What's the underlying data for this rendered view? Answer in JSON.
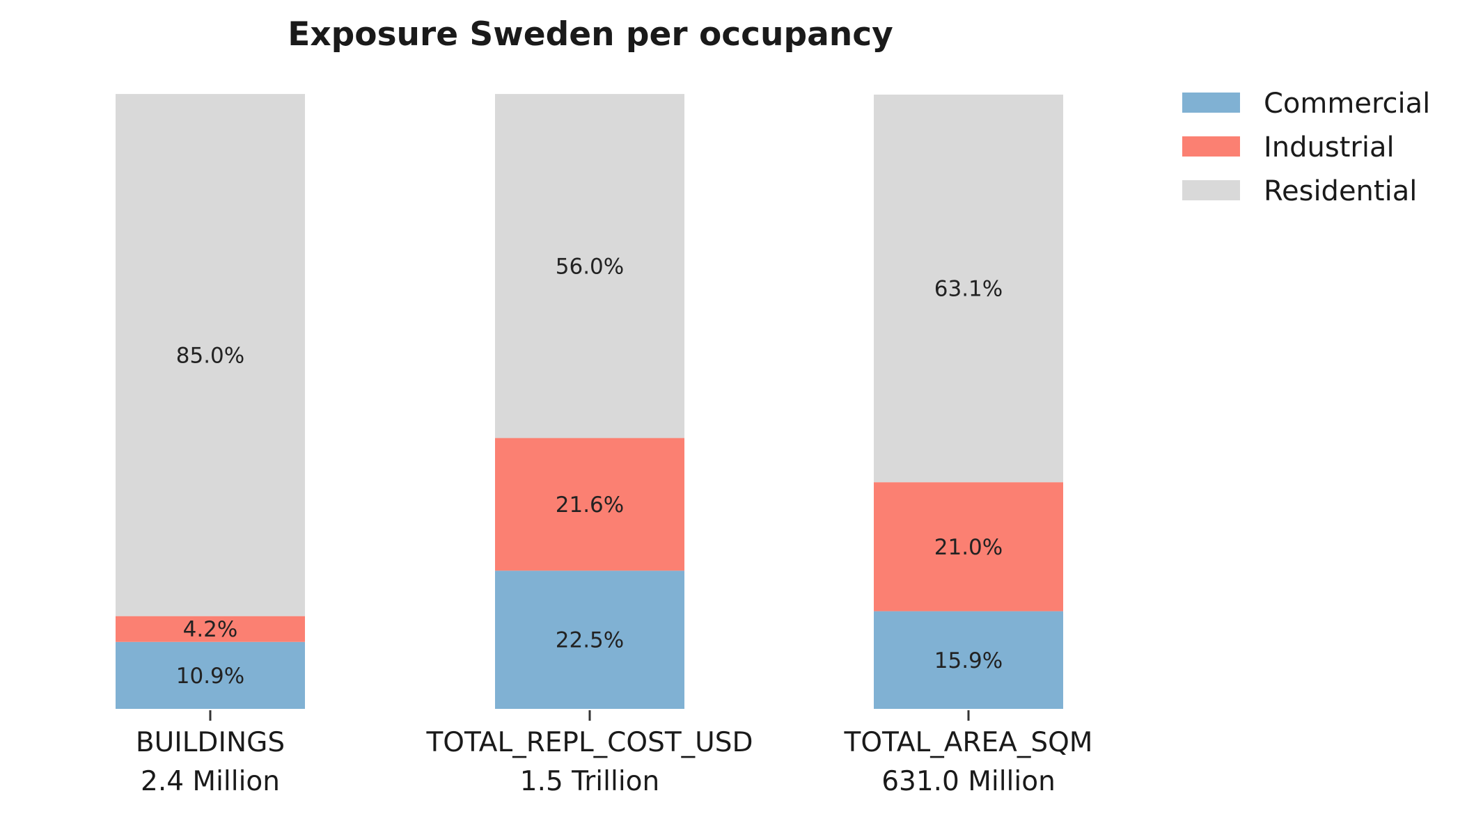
{
  "chart_data": {
    "type": "bar",
    "stacked": true,
    "normalized_percent": true,
    "title": "Exposure Sweden per occupancy",
    "xlabel": "",
    "ylabel": "",
    "ylim": [
      0,
      100
    ],
    "grid": false,
    "legend_position": "top-right",
    "categories": [
      {
        "name": "BUILDINGS",
        "total": "2.4 Million"
      },
      {
        "name": "TOTAL_REPL_COST_USD",
        "total": "1.5 Trillion"
      },
      {
        "name": "TOTAL_AREA_SQM",
        "total": "631.0 Million"
      }
    ],
    "series": [
      {
        "name": "Commercial",
        "color": "#80b1d3",
        "values": [
          10.9,
          22.5,
          15.9
        ],
        "labels": [
          "10.9%",
          "22.5%",
          "15.9%"
        ]
      },
      {
        "name": "Industrial",
        "color": "#fb8072",
        "values": [
          4.2,
          21.6,
          21.0
        ],
        "labels": [
          "4.2%",
          "21.6%",
          "21.0%"
        ]
      },
      {
        "name": "Residential",
        "color": "#d9d9d9",
        "values": [
          85.0,
          56.0,
          63.1
        ],
        "labels": [
          "85.0%",
          "56.0%",
          "63.1%"
        ]
      }
    ]
  }
}
